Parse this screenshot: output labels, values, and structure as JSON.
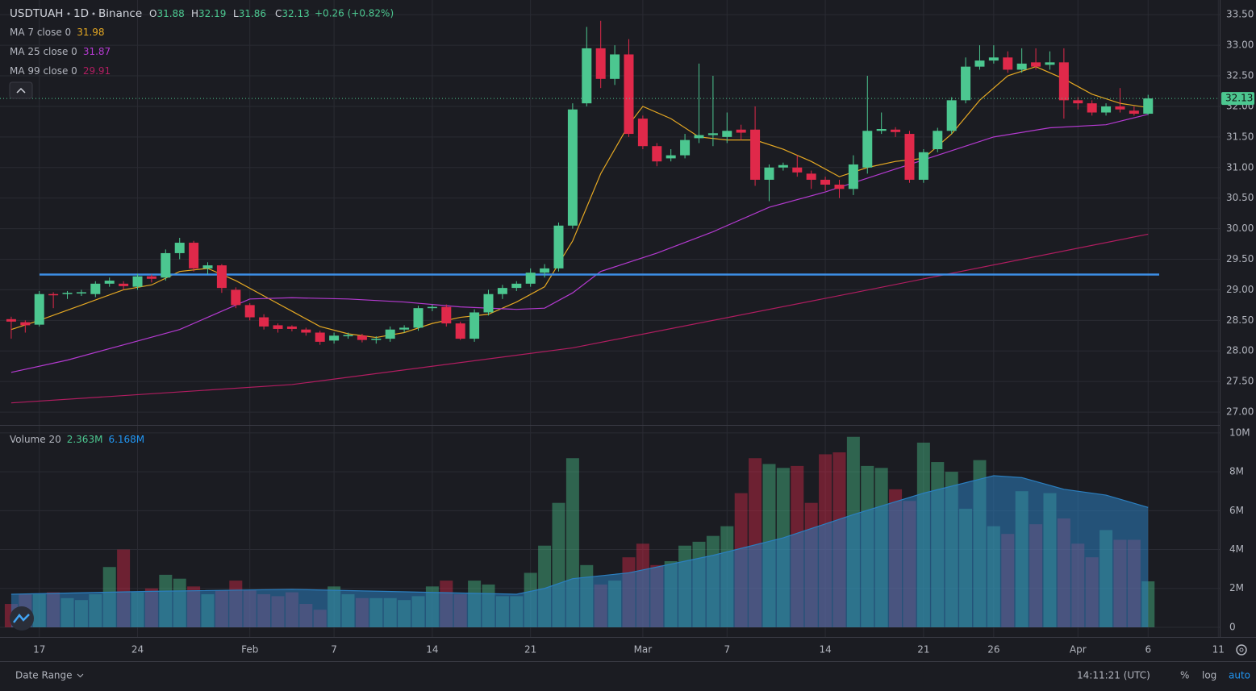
{
  "chart_data": {
    "type": "candlestick",
    "symbol": "USDTUAH",
    "interval": "1D",
    "exchange": "Binance",
    "ohlc_legend": [
      {
        "label": "O",
        "value": 31.88
      },
      {
        "label": "H",
        "value": 32.19
      },
      {
        "label": "L",
        "value": 31.86
      },
      {
        "label": "C",
        "value": 32.13
      }
    ],
    "change": "+0.26 (+0.82%)",
    "colors": {
      "up": "#4cc790",
      "down": "#e0294a",
      "background": "#1b1c22",
      "grid": "#2a2b33",
      "text": "#b2b5be",
      "level": "#3d8fe6"
    },
    "open": [
      28.52,
      28.47,
      28.43,
      28.93,
      28.93,
      28.95,
      28.93,
      29.1,
      29.1,
      29.05,
      29.22,
      29.2,
      29.6,
      29.77,
      29.35,
      29.4,
      29.0,
      28.75,
      28.55,
      28.42,
      28.4,
      28.35,
      28.3,
      28.17,
      28.24,
      28.25,
      28.18,
      28.2,
      28.35,
      28.38,
      28.7,
      28.72,
      28.45,
      28.2,
      28.63,
      28.93,
      29.03,
      29.1,
      29.28,
      29.35,
      30.05,
      32.05,
      32.95,
      32.45,
      32.85,
      31.8,
      31.35,
      31.15,
      31.2,
      31.48,
      31.53,
      31.5,
      31.62,
      31.62,
      30.8,
      31.0,
      31.0,
      30.9,
      30.8,
      30.72,
      30.65,
      31.0,
      31.6,
      31.62,
      31.55,
      30.8,
      31.3,
      31.6,
      32.1,
      32.65,
      32.75,
      32.8,
      32.6,
      32.72,
      32.68,
      32.72,
      32.1,
      32.05,
      31.9,
      32.0,
      31.93,
      31.88
    ],
    "high": [
      28.56,
      28.5,
      28.98,
      28.96,
      28.98,
      29.0,
      29.14,
      29.2,
      29.14,
      29.26,
      29.25,
      29.66,
      29.85,
      29.8,
      29.45,
      29.42,
      29.04,
      28.78,
      28.6,
      28.45,
      28.42,
      28.38,
      28.33,
      28.3,
      28.3,
      28.28,
      28.24,
      28.4,
      28.42,
      28.74,
      28.76,
      28.76,
      28.48,
      28.68,
      29.0,
      29.08,
      29.14,
      29.35,
      29.42,
      30.1,
      32.05,
      33.3,
      33.4,
      33.0,
      33.1,
      31.85,
      31.4,
      31.3,
      31.55,
      32.7,
      32.5,
      31.9,
      31.7,
      32.0,
      31.05,
      31.08,
      31.2,
      30.95,
      30.85,
      30.8,
      31.2,
      32.5,
      31.9,
      31.66,
      31.6,
      31.3,
      31.65,
      32.15,
      32.8,
      33.0,
      33.0,
      32.9,
      32.95,
      32.95,
      32.9,
      32.95,
      32.15,
      32.1,
      32.05,
      32.3,
      32.0,
      32.19
    ],
    "low": [
      28.2,
      28.3,
      28.4,
      28.7,
      28.85,
      28.9,
      28.88,
      29.05,
      29.0,
      29.0,
      29.12,
      29.15,
      29.5,
      29.3,
      29.25,
      28.95,
      28.7,
      28.5,
      28.35,
      28.3,
      28.32,
      28.25,
      28.1,
      28.12,
      28.2,
      28.14,
      28.12,
      28.15,
      28.3,
      28.33,
      28.65,
      28.4,
      28.18,
      28.15,
      28.58,
      28.85,
      28.98,
      29.05,
      29.2,
      29.3,
      30.0,
      32.0,
      32.3,
      32.35,
      31.5,
      31.3,
      31.02,
      31.1,
      31.15,
      31.4,
      31.35,
      31.4,
      31.45,
      30.7,
      30.45,
      30.95,
      30.85,
      30.65,
      30.62,
      30.5,
      30.55,
      30.9,
      31.55,
      31.5,
      30.75,
      30.75,
      31.25,
      31.55,
      32.05,
      32.6,
      32.7,
      32.55,
      32.55,
      32.6,
      32.6,
      31.8,
      31.95,
      31.85,
      31.85,
      31.9,
      31.85,
      31.86
    ],
    "close": [
      28.48,
      28.42,
      28.93,
      28.92,
      28.95,
      28.96,
      29.1,
      29.15,
      29.06,
      29.22,
      29.18,
      29.6,
      29.77,
      29.35,
      29.4,
      29.03,
      28.75,
      28.55,
      28.4,
      28.36,
      28.36,
      28.3,
      28.15,
      28.25,
      28.26,
      28.18,
      28.2,
      28.35,
      28.38,
      28.7,
      28.72,
      28.45,
      28.2,
      28.63,
      28.93,
      29.03,
      29.1,
      29.28,
      29.35,
      30.05,
      31.95,
      32.95,
      32.45,
      32.85,
      31.55,
      31.35,
      31.1,
      31.2,
      31.45,
      31.53,
      31.56,
      31.6,
      31.57,
      30.8,
      31.0,
      31.04,
      30.92,
      30.8,
      30.72,
      30.65,
      31.05,
      31.6,
      31.63,
      31.58,
      30.8,
      31.25,
      31.6,
      32.1,
      32.65,
      32.75,
      32.8,
      32.6,
      32.7,
      32.65,
      32.72,
      32.1,
      32.05,
      31.9,
      32.0,
      31.95,
      31.88,
      32.13
    ],
    "ma_lines": [
      {
        "name": "MA 7 close 0",
        "color": "#e5a823",
        "x": [
          0,
          2,
          5,
          8,
          10,
          12,
          14,
          16,
          18,
          20,
          22,
          24,
          26,
          28,
          30,
          32,
          34,
          36,
          38,
          40,
          42,
          44,
          45,
          47,
          49,
          51,
          53,
          55,
          57,
          59,
          61,
          63,
          65,
          67,
          69,
          71,
          73,
          75,
          77,
          79,
          81
        ],
        "values": [
          28.35,
          28.5,
          28.75,
          29.0,
          29.08,
          29.3,
          29.35,
          29.15,
          28.9,
          28.65,
          28.4,
          28.28,
          28.22,
          28.3,
          28.45,
          28.55,
          28.6,
          28.8,
          29.05,
          29.8,
          30.9,
          31.7,
          32.0,
          31.8,
          31.5,
          31.45,
          31.45,
          31.3,
          31.1,
          30.85,
          31.0,
          31.1,
          31.15,
          31.55,
          32.1,
          32.5,
          32.65,
          32.45,
          32.2,
          32.05,
          31.98
        ]
      },
      {
        "name": "MA 25 close 0",
        "color": "#b43ad0",
        "x": [
          0,
          4,
          8,
          12,
          15,
          17,
          20,
          24,
          28,
          32,
          36,
          38,
          40,
          42,
          46,
          50,
          54,
          58,
          62,
          66,
          70,
          74,
          78,
          81
        ],
        "values": [
          27.65,
          27.85,
          28.1,
          28.35,
          28.65,
          28.85,
          28.87,
          28.85,
          28.8,
          28.72,
          28.68,
          28.7,
          28.95,
          29.3,
          29.6,
          29.95,
          30.35,
          30.6,
          30.9,
          31.2,
          31.5,
          31.65,
          31.7,
          31.87
        ]
      },
      {
        "name": "MA 99 close 0",
        "color": "#b01d60",
        "x": [
          0,
          20,
          40,
          60,
          81
        ],
        "values": [
          27.15,
          27.45,
          28.05,
          28.95,
          29.91
        ]
      }
    ],
    "level": 29.25,
    "xlim": [
      -0.8,
      86.1
    ],
    "xticks": [
      {
        "value": 2,
        "label": "17"
      },
      {
        "value": 9,
        "label": "24"
      },
      {
        "value": 17,
        "label": "Feb"
      },
      {
        "value": 23,
        "label": "7"
      },
      {
        "value": 30,
        "label": "14"
      },
      {
        "value": 37,
        "label": "21"
      },
      {
        "value": 45,
        "label": "Mar"
      },
      {
        "value": 51,
        "label": "7"
      },
      {
        "value": 58,
        "label": "14"
      },
      {
        "value": 65,
        "label": "21"
      },
      {
        "value": 70,
        "label": "26"
      },
      {
        "value": 76,
        "label": "Apr"
      },
      {
        "value": 81,
        "label": "6"
      },
      {
        "value": 86,
        "label": "11"
      }
    ],
    "ylim": [
      26.79,
      33.74
    ],
    "yticks": [
      {
        "value": 27,
        "label": "27.00"
      },
      {
        "value": 27.5,
        "label": "27.50"
      },
      {
        "value": 28,
        "label": "28.00"
      },
      {
        "value": 28.5,
        "label": "28.50"
      },
      {
        "value": 29,
        "label": "29.00"
      },
      {
        "value": 29.5,
        "label": "29.50"
      },
      {
        "value": 30,
        "label": "30.00"
      },
      {
        "value": 30.5,
        "label": "30.50"
      },
      {
        "value": 31,
        "label": "31.00"
      },
      {
        "value": 31.5,
        "label": "31.50"
      },
      {
        "value": 32,
        "label": "32.00"
      },
      {
        "value": 32.5,
        "label": "32.50"
      },
      {
        "value": 33,
        "label": "33.00"
      },
      {
        "value": 33.5,
        "label": "33.50"
      }
    ],
    "volume": {
      "name": "Volume 20",
      "legend_label": "2.363M",
      "values": [
        1.2,
        1.7,
        1.7,
        1.8,
        1.5,
        1.4,
        1.7,
        3.1,
        4.0,
        1.8,
        2.0,
        2.7,
        2.5,
        2.1,
        1.7,
        1.9,
        2.4,
        1.9,
        1.7,
        1.6,
        1.8,
        1.2,
        0.9,
        2.1,
        1.7,
        1.5,
        1.5,
        1.5,
        1.4,
        1.6,
        2.1,
        2.4,
        1.7,
        2.4,
        2.2,
        1.6,
        1.6,
        2.8,
        4.2,
        6.4,
        8.7,
        3.2,
        2.2,
        2.4,
        3.6,
        4.3,
        3.2,
        3.4,
        4.2,
        4.4,
        4.7,
        5.2,
        6.9,
        8.7,
        8.4,
        8.2,
        8.3,
        6.4,
        8.9,
        9.0,
        9.8,
        8.3,
        8.2,
        7.1,
        6.5,
        9.5,
        8.5,
        8.0,
        6.1,
        8.6,
        5.2,
        4.8,
        7.0,
        5.3,
        6.9,
        5.6,
        4.3,
        3.6,
        5.0,
        4.5,
        4.5,
        2.363
      ],
      "ma": {
        "color": "#2b7fc0",
        "legend_label": "6.168M",
        "x": [
          0,
          10,
          20,
          36,
          38,
          40,
          44,
          50,
          55,
          60,
          65,
          70,
          72,
          75,
          78,
          81
        ],
        "values": [
          1.7,
          1.85,
          1.95,
          1.7,
          2.0,
          2.5,
          2.8,
          3.7,
          4.6,
          5.8,
          6.9,
          7.8,
          7.7,
          7.1,
          6.8,
          6.168
        ]
      },
      "ylim": [
        -0.5,
        10.37
      ],
      "yticks": [
        0,
        {
          "value": 2,
          "label": "2M"
        },
        {
          "value": 4,
          "label": "4M"
        },
        {
          "value": 6,
          "label": "6M"
        },
        {
          "value": 8,
          "label": "8M"
        },
        {
          "value": 10,
          "label": "10M"
        }
      ]
    },
    "footer": {
      "date_range": "Date Range",
      "time": "14:11:21 (UTC)",
      "percent": "%",
      "log": "log",
      "auto": "auto"
    }
  }
}
